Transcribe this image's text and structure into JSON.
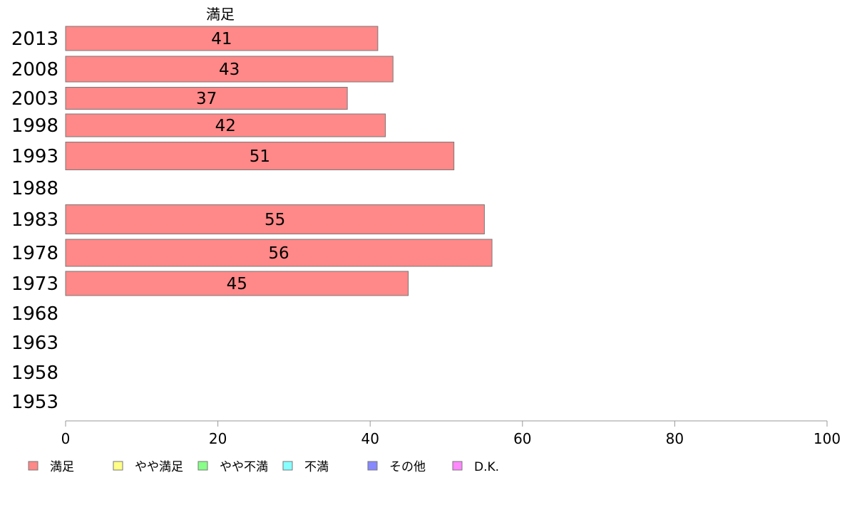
{
  "chart_data": {
    "type": "bar",
    "orientation": "horizontal",
    "series_header": "満足",
    "categories": [
      "2013",
      "2008",
      "2003",
      "1998",
      "1993",
      "1988",
      "1983",
      "1978",
      "1973",
      "1968",
      "1963",
      "1958",
      "1953"
    ],
    "series": [
      {
        "name": "満足",
        "color": "#ff8888",
        "values": [
          41,
          43,
          37,
          42,
          51,
          null,
          55,
          56,
          45,
          null,
          null,
          null,
          null
        ]
      }
    ],
    "data_labels": [
      "41",
      "43",
      "37",
      "42",
      "51",
      "",
      "55",
      "56",
      "45",
      "",
      "",
      "",
      ""
    ],
    "xlim": [
      0,
      100
    ],
    "xticks": [
      0,
      20,
      40,
      60,
      80,
      100
    ],
    "legend": {
      "placement": "bottom",
      "items": [
        {
          "label": "満足",
          "color": "#ff8888"
        },
        {
          "label": "やや満足",
          "color": "#ffff88"
        },
        {
          "label": "やや不満",
          "color": "#88ff88"
        },
        {
          "label": "不満",
          "color": "#88ffff"
        },
        {
          "label": "その他",
          "color": "#8888ff"
        },
        {
          "label": "D.K.",
          "color": "#ff88ff"
        }
      ]
    },
    "grid": false
  }
}
